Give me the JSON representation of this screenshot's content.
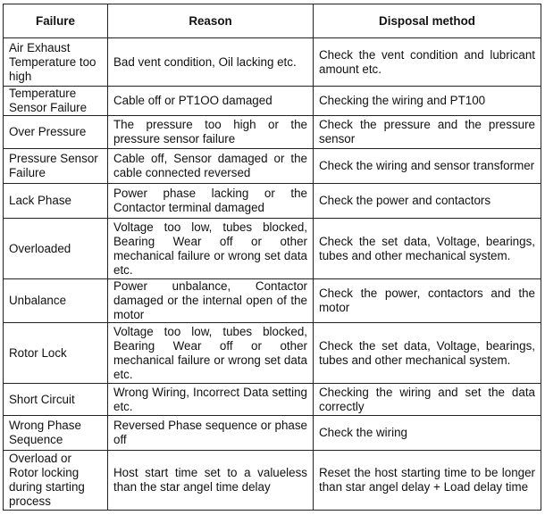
{
  "headers": [
    "Failure",
    "Reason",
    "Disposal method"
  ],
  "rows": [
    {
      "failure": "Air Exhaust Temperature too high",
      "reason": "Bad vent condition, Oil lacking etc.",
      "disposal": "Check the vent condition and lubricant amount etc."
    },
    {
      "failure": "Temperature Sensor Failure",
      "reason": "Cable off or PT1OO damaged",
      "disposal": "Checking the wiring and PT100"
    },
    {
      "failure": "Over Pressure",
      "reason": "The pressure too high or the pressure sensor failure",
      "disposal": "Check the pressure and the pressure sensor"
    },
    {
      "failure": "Pressure Sensor Failure",
      "reason": "Cable off, Sensor damaged or the cable connected reversed",
      "disposal": "Check the wiring and sensor transformer"
    },
    {
      "failure": "Lack Phase",
      "reason": "Power phase lacking or the Contactor terminal damaged",
      "disposal": "Check the power and contactors"
    },
    {
      "failure": "Overloaded",
      "reason": "Voltage too low, tubes blocked, Bearing Wear off or other mechanical failure or wrong set data etc.",
      "disposal": "Check the set data, Voltage, bearings, tubes and other mechanical system."
    },
    {
      "failure": "Unbalance",
      "reason": "Power unbalance, Contactor damaged or the internal open of the motor",
      "disposal": "Check the power, contactors and the motor"
    },
    {
      "failure": "Rotor Lock",
      "reason": "Voltage too low, tubes blocked, Bearing Wear off or other mechanical failure or wrong set data etc.",
      "disposal": "Check the set data, Voltage, bearings, tubes and other mechanical system."
    },
    {
      "failure": "Short Circuit",
      "reason": "Wrong Wiring, Incorrect Data setting etc.",
      "disposal": "Checking the wiring and set the data correctly"
    },
    {
      "failure": "Wrong Phase Sequence",
      "reason": "Reversed Phase sequence or phase off",
      "disposal": "Check the wiring"
    },
    {
      "failure": "Overload or Rotor locking during starting process",
      "reason": "Host start time set to a valueless than the star angel time delay",
      "disposal": "Reset the host starting time to be longer than star angel delay + Load delay time"
    }
  ]
}
